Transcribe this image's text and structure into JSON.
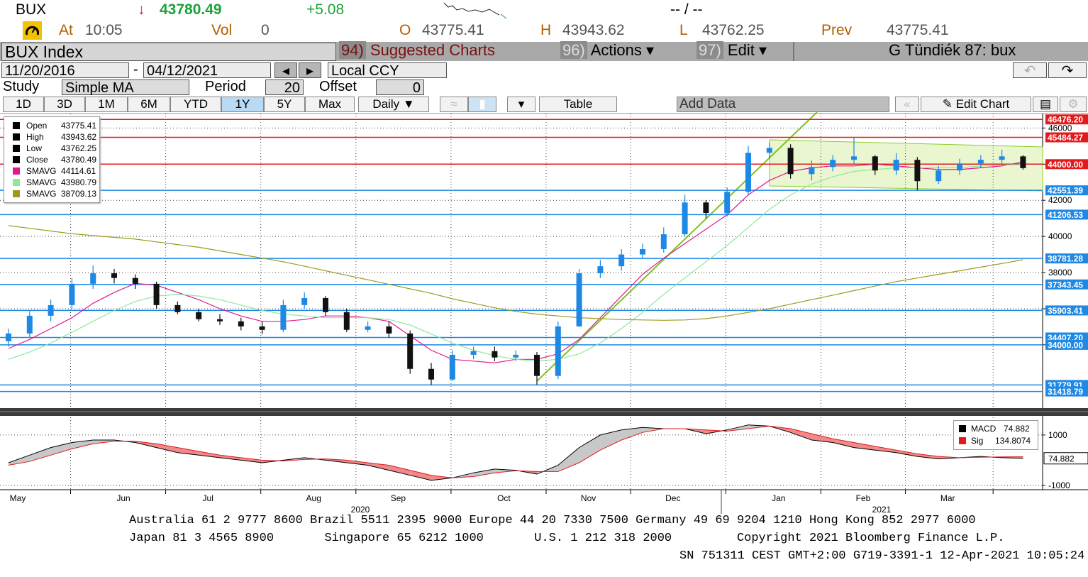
{
  "header": {
    "ticker": "BUX",
    "arrow": "↓",
    "price": "43780.49",
    "change": "+5.08",
    "bid_ask": "-- / --",
    "at_label": "At",
    "time": "10:05",
    "vol_label": "Vol",
    "vol": "0",
    "open_label": "O",
    "open": "43775.41",
    "high_label": "H",
    "high": "43943.62",
    "low_label": "L",
    "low": "43762.25",
    "prev_label": "Prev",
    "prev": "43775.41"
  },
  "toolbar": {
    "security": "BUX Index",
    "menu": [
      {
        "num": "94)",
        "label": "Suggested Charts"
      },
      {
        "num": "96)",
        "label": "Actions ▾"
      },
      {
        "num": "97)",
        "label": "Edit ▾"
      }
    ],
    "user": "G Tündiék 87: bux"
  },
  "range": {
    "start": "11/20/2016",
    "sep": "-",
    "end": "04/12/2021",
    "currency": "Local CCY"
  },
  "study": {
    "label": "Study",
    "type": "Simple MA",
    "period_label": "Period",
    "period": "20",
    "offset_label": "Offset",
    "offset": "0"
  },
  "periods": [
    "1D",
    "3D",
    "1M",
    "6M",
    "YTD",
    "1Y",
    "5Y",
    "Max"
  ],
  "active_period": 5,
  "frequency": "Daily ▼",
  "table": "Table",
  "add_data": "Add Data",
  "edit_chart": "Edit Chart",
  "legend": [
    {
      "name": "Open",
      "value": "43775.41",
      "color": "#000000"
    },
    {
      "name": "High",
      "value": "43943.62",
      "color": "#000000"
    },
    {
      "name": "Low",
      "value": "43762.25",
      "color": "#000000"
    },
    {
      "name": "Close",
      "value": "43780.49",
      "color": "#000000"
    },
    {
      "name": "SMAVG",
      "value": "44114.61",
      "color": "#e0198f"
    },
    {
      "name": "SMAVG",
      "value": "43980.79",
      "color": "#8ee89a"
    },
    {
      "name": "SMAVG",
      "value": "38709.13",
      "color": "#9c9a1e"
    }
  ],
  "chart_data": [
    {
      "type": "candlestick",
      "categories": [
        "May",
        null,
        null,
        null,
        null,
        "Jun",
        null,
        null,
        null,
        "Jul",
        null,
        null,
        null,
        null,
        "Aug",
        null,
        null,
        null,
        "Sep",
        null,
        null,
        null,
        null,
        "Oct",
        null,
        null,
        null,
        "Nov",
        null,
        null,
        null,
        "Dec",
        null,
        null,
        null,
        null,
        "Jan",
        null,
        null,
        null,
        "Feb",
        null,
        null,
        null,
        "Mar",
        null,
        null,
        null,
        null
      ],
      "open": [
        34200,
        34630,
        35610,
        36200,
        37380,
        37960,
        37700,
        37380,
        36200,
        35810,
        35420,
        35300,
        35020,
        34830,
        36200,
        36590,
        35810,
        34830,
        35020,
        34630,
        32670,
        32080,
        33450,
        33650,
        33300,
        33450,
        32280,
        35020,
        37960,
        38350,
        39000,
        39300,
        40120,
        41880,
        41300,
        42470,
        44630,
        44900,
        43450,
        43840,
        44240,
        44430,
        43650,
        44240,
        43060,
        43650,
        44040,
        44240,
        44430
      ],
      "high": [
        34900,
        35900,
        36500,
        37700,
        38400,
        38200,
        37900,
        37500,
        36400,
        36000,
        35700,
        35500,
        35300,
        36500,
        36900,
        36700,
        36000,
        35300,
        35300,
        34800,
        33000,
        33700,
        33900,
        33900,
        33700,
        33600,
        35300,
        38200,
        38700,
        39300,
        39600,
        40500,
        42300,
        42000,
        42700,
        45000,
        45200,
        45100,
        44200,
        44500,
        45484.27,
        44500,
        44600,
        44400,
        43900,
        44300,
        44500,
        44800,
        44500
      ],
      "low": [
        33900,
        34400,
        35300,
        36000,
        37100,
        37400,
        37100,
        36000,
        35700,
        35300,
        35100,
        34800,
        34600,
        34700,
        36000,
        35600,
        34700,
        34700,
        34400,
        32400,
        31779.91,
        32000,
        33200,
        33100,
        33100,
        31800,
        32100,
        35000,
        37700,
        38100,
        38800,
        39100,
        40000,
        41000,
        41100,
        42300,
        44300,
        43200,
        43100,
        43600,
        44000,
        43400,
        43400,
        42551.39,
        42900,
        43400,
        43800,
        44000,
        43700
      ],
      "close": [
        34630,
        35610,
        36200,
        37380,
        37960,
        37700,
        37380,
        36200,
        35810,
        35420,
        35300,
        35020,
        34830,
        36200,
        36590,
        35810,
        34830,
        35020,
        34630,
        32670,
        32080,
        33450,
        33650,
        33300,
        33450,
        32280,
        35020,
        37960,
        38350,
        39000,
        39300,
        40120,
        41880,
        41300,
        42470,
        44630,
        44900,
        43450,
        43840,
        44240,
        44430,
        43650,
        44240,
        43060,
        43650,
        44040,
        44240,
        44430,
        43780.49
      ],
      "up_color": "#1e88e5",
      "down_color": "#111111",
      "series": [
        {
          "name": "SMAVG",
          "color": "#e0198f",
          "values": [
            33800,
            34300,
            34900,
            35500,
            36300,
            36900,
            37400,
            37300,
            36900,
            36500,
            36000,
            35600,
            35300,
            35300,
            35400,
            35600,
            35600,
            35500,
            35300,
            34500,
            33700,
            33200,
            33100,
            33000,
            33200,
            33200,
            33500,
            34300,
            35500,
            36700,
            37900,
            38800,
            39600,
            40400,
            41200,
            42300,
            43100,
            43600,
            43800,
            43900,
            43900,
            44000,
            43900,
            43800,
            43700,
            43700,
            43800,
            43900,
            44114.61
          ]
        },
        {
          "name": "SMAVG",
          "color": "#8ee89a",
          "values": [
            33200,
            33600,
            34100,
            34700,
            35300,
            35900,
            36400,
            36700,
            36800,
            36700,
            36500,
            36200,
            35900,
            35700,
            35600,
            35500,
            35500,
            35500,
            35400,
            35100,
            34600,
            34100,
            33700,
            33400,
            33200,
            33100,
            33200,
            33500,
            34100,
            34900,
            35800,
            36800,
            37700,
            38600,
            39500,
            40500,
            41500,
            42300,
            42900,
            43300,
            43600,
            43700,
            43800,
            43800,
            43800,
            43800,
            43900,
            43950,
            43980.79
          ]
        },
        {
          "name": "SMAVG",
          "color": "#9c9a1e",
          "values": [
            40600,
            40450,
            40300,
            40150,
            40050,
            39950,
            39850,
            39700,
            39550,
            39400,
            39200,
            39000,
            38800,
            38600,
            38350,
            38100,
            37850,
            37600,
            37350,
            37100,
            36850,
            36550,
            36300,
            36050,
            35850,
            35700,
            35600,
            35500,
            35450,
            35400,
            35380,
            35360,
            35380,
            35450,
            35600,
            35800,
            36000,
            36250,
            36500,
            36750,
            37000,
            37250,
            37500,
            37700,
            37900,
            38100,
            38300,
            38500,
            38709.13
          ]
        }
      ],
      "ylim": [
        30500,
        46800
      ],
      "yticks": [
        34000,
        36000,
        38000,
        40000,
        42000,
        44000,
        46000
      ],
      "grid": true,
      "levels": [
        {
          "value": 46476.2,
          "label": "46476.20",
          "color": "#e31a1c"
        },
        {
          "value": 45484.27,
          "label": "45484.27",
          "color": "#e31a1c"
        },
        {
          "value": 44000,
          "label": "44000.00",
          "color": "#e31a1c"
        },
        {
          "value": 42551.39,
          "label": "42551.39",
          "color": "#1e88e5"
        },
        {
          "value": 41206.53,
          "label": "41206.53",
          "color": "#1e88e5"
        },
        {
          "value": 38781.28,
          "label": "38781.28",
          "color": "#1e88e5"
        },
        {
          "value": 37343.45,
          "label": "37343.45",
          "color": "#1e88e5"
        },
        {
          "value": 35903.41,
          "label": "35903.41",
          "color": "#1e88e5"
        },
        {
          "value": 34407.2,
          "label": "34407.20",
          "color": "#1e88e5"
        },
        {
          "value": 34000,
          "label": "34000.00",
          "color": "#1e88e5"
        },
        {
          "value": 31779.91,
          "label": "31779.91",
          "color": "#1e88e5"
        },
        {
          "value": 31418.79,
          "label": "31418.79",
          "color": "#1e88e5"
        }
      ],
      "year_labels": [
        "2020",
        "2021"
      ]
    },
    {
      "type": "line",
      "series": [
        {
          "name": "MACD",
          "color": "#000000",
          "values": [
            -100,
            200,
            500,
            700,
            800,
            800,
            700,
            500,
            300,
            200,
            100,
            0,
            -100,
            0,
            100,
            0,
            -100,
            -200,
            -400,
            -600,
            -800,
            -700,
            -500,
            -350,
            -400,
            -550,
            -200,
            500,
            1000,
            1200,
            1300,
            1250,
            1250,
            1050,
            1200,
            1400,
            1350,
            1100,
            800,
            700,
            500,
            400,
            300,
            150,
            50,
            100,
            150,
            100,
            74.882
          ]
        },
        {
          "name": "Sig",
          "color": "#e31a1c",
          "values": [
            -200,
            -50,
            200,
            450,
            650,
            750,
            750,
            650,
            500,
            350,
            200,
            100,
            0,
            -30,
            30,
            50,
            0,
            -100,
            -200,
            -400,
            -600,
            -700,
            -650,
            -500,
            -420,
            -450,
            -450,
            -100,
            400,
            800,
            1100,
            1250,
            1250,
            1200,
            1150,
            1250,
            1350,
            1250,
            1050,
            850,
            700,
            550,
            400,
            250,
            150,
            100,
            120,
            130,
            134.8074
          ]
        }
      ],
      "ylim": [
        -1170,
        1700
      ],
      "yticks": [
        -1000,
        1000
      ],
      "grid": true,
      "above_color": "#c8c8c8",
      "below_color": "#f08a8a"
    }
  ],
  "footer": [
    "Australia 61 2 9777 8600 Brazil 5511 2395 9000 Europe 44 20 7330 7500 Germany 49 69 9204 1210 Hong Kong 852 2977 6000",
    "Japan 81 3 4565 8900       Singapore 65 6212 1000       U.S. 1 212 318 2000         Copyright 2021 Bloomberg Finance L.P.",
    "SN 751311 CEST GMT+2:00 G719-3391-1 12-Apr-2021 10:05:24"
  ]
}
